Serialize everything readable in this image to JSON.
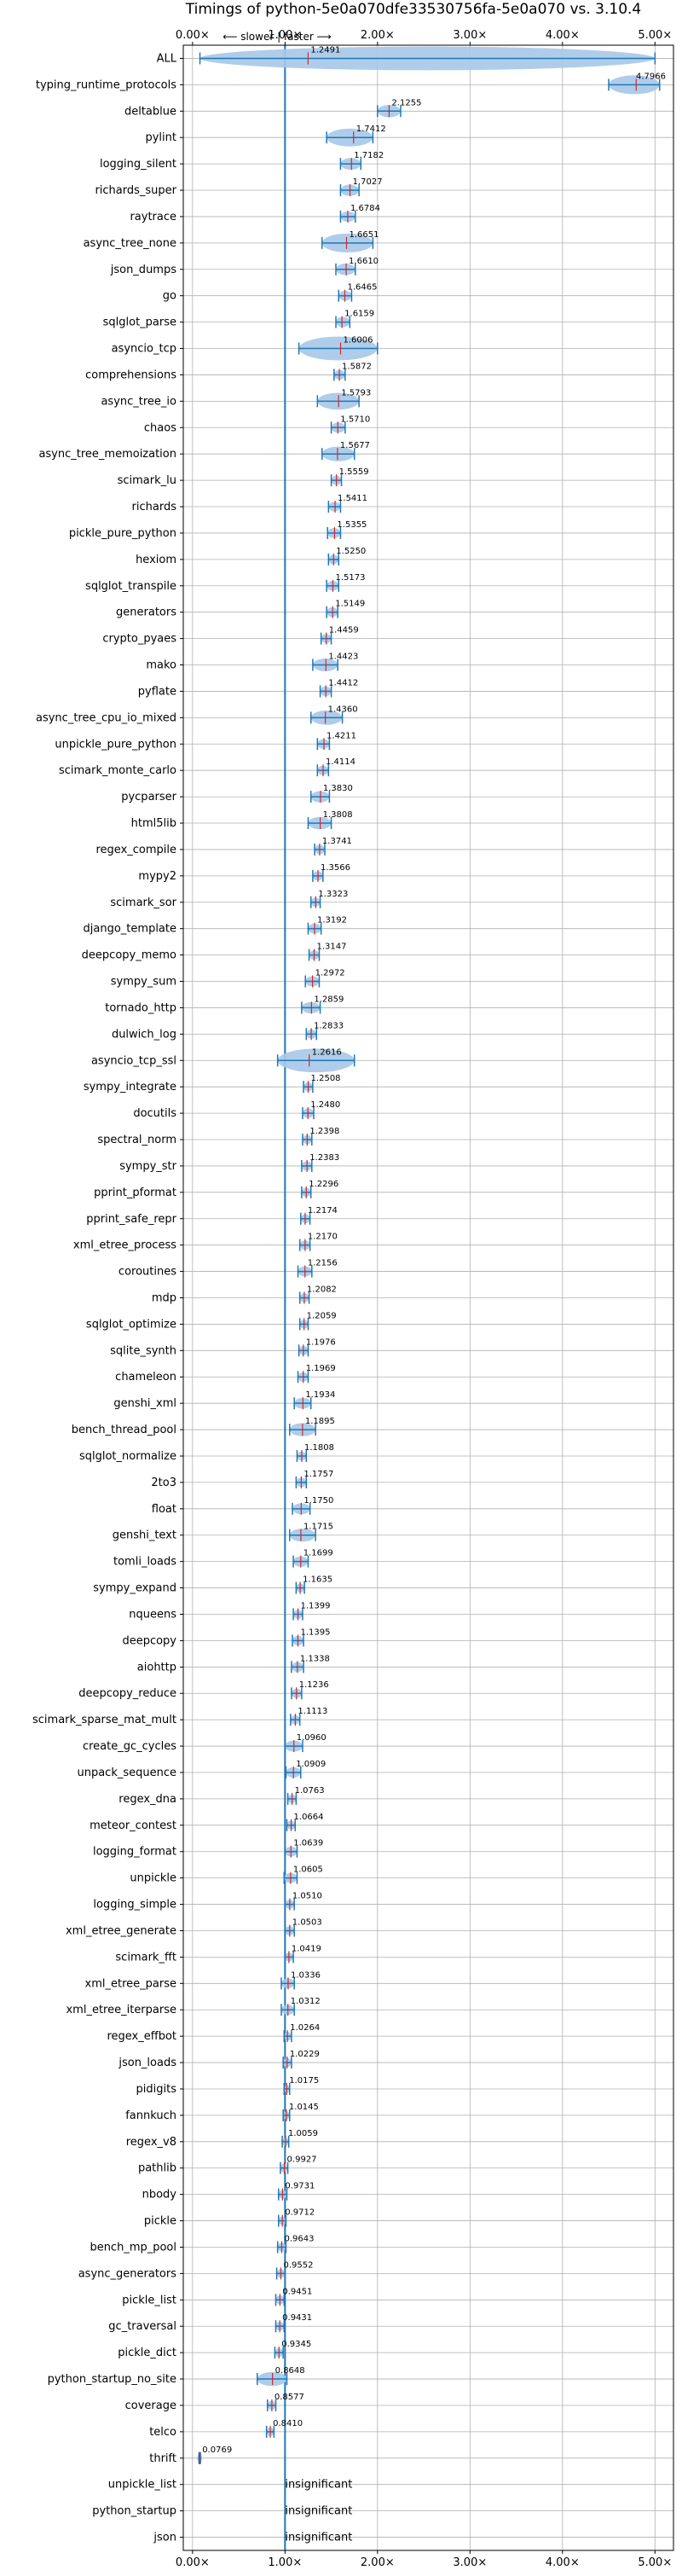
{
  "chart_data": {
    "type": "violin",
    "title": "Timings of python-5e0a070dfe33530756fa-5e0a070 vs. 3.10.4",
    "direction_label": "⟵ slower | faster ⟶",
    "xlim": [
      -0.1,
      5.2
    ],
    "x_ticks": [
      "0.00×",
      "1.00×",
      "2.00×",
      "3.00×",
      "4.00×",
      "5.00×"
    ],
    "x_tick_values": [
      0,
      1,
      2,
      3,
      4,
      5
    ],
    "reference_line": 1.0,
    "grid": true,
    "colors": {
      "violin": "#a6c8e8",
      "line": "#1f77b4",
      "median": "#d62728",
      "grid": "#b0b0b0"
    },
    "benchmarks": [
      {
        "name": "ALL",
        "value": 1.2491,
        "lo": 0.08,
        "hi": 5.0
      },
      {
        "name": "typing_runtime_protocols",
        "value": 4.7966,
        "lo": 4.5,
        "hi": 5.05
      },
      {
        "name": "deltablue",
        "value": 2.1255,
        "lo": 2.0,
        "hi": 2.25
      },
      {
        "name": "pylint",
        "value": 1.7412,
        "lo": 1.45,
        "hi": 1.95
      },
      {
        "name": "logging_silent",
        "value": 1.7182,
        "lo": 1.6,
        "hi": 1.82
      },
      {
        "name": "richards_super",
        "value": 1.7027,
        "lo": 1.6,
        "hi": 1.8
      },
      {
        "name": "raytrace",
        "value": 1.6784,
        "lo": 1.6,
        "hi": 1.76
      },
      {
        "name": "async_tree_none",
        "value": 1.6651,
        "lo": 1.4,
        "hi": 1.95
      },
      {
        "name": "json_dumps",
        "value": 1.661,
        "lo": 1.55,
        "hi": 1.76
      },
      {
        "name": "go",
        "value": 1.6465,
        "lo": 1.58,
        "hi": 1.72
      },
      {
        "name": "sqlglot_parse",
        "value": 1.6159,
        "lo": 1.55,
        "hi": 1.7
      },
      {
        "name": "asyncio_tcp",
        "value": 1.6006,
        "lo": 1.15,
        "hi": 2.0
      },
      {
        "name": "comprehensions",
        "value": 1.5872,
        "lo": 1.53,
        "hi": 1.65
      },
      {
        "name": "async_tree_io",
        "value": 1.5793,
        "lo": 1.35,
        "hi": 1.8
      },
      {
        "name": "chaos",
        "value": 1.571,
        "lo": 1.5,
        "hi": 1.65
      },
      {
        "name": "async_tree_memoization",
        "value": 1.5677,
        "lo": 1.4,
        "hi": 1.75
      },
      {
        "name": "scimark_lu",
        "value": 1.5559,
        "lo": 1.5,
        "hi": 1.61
      },
      {
        "name": "richards",
        "value": 1.5411,
        "lo": 1.47,
        "hi": 1.6
      },
      {
        "name": "pickle_pure_python",
        "value": 1.5355,
        "lo": 1.46,
        "hi": 1.6
      },
      {
        "name": "hexiom",
        "value": 1.525,
        "lo": 1.47,
        "hi": 1.58
      },
      {
        "name": "sqlglot_transpile",
        "value": 1.5173,
        "lo": 1.45,
        "hi": 1.58
      },
      {
        "name": "generators",
        "value": 1.5149,
        "lo": 1.45,
        "hi": 1.57
      },
      {
        "name": "crypto_pyaes",
        "value": 1.4459,
        "lo": 1.39,
        "hi": 1.5
      },
      {
        "name": "mako",
        "value": 1.4423,
        "lo": 1.3,
        "hi": 1.57
      },
      {
        "name": "pyflate",
        "value": 1.4412,
        "lo": 1.38,
        "hi": 1.5
      },
      {
        "name": "async_tree_cpu_io_mixed",
        "value": 1.436,
        "lo": 1.28,
        "hi": 1.62
      },
      {
        "name": "unpickle_pure_python",
        "value": 1.4211,
        "lo": 1.35,
        "hi": 1.48
      },
      {
        "name": "scimark_monte_carlo",
        "value": 1.4114,
        "lo": 1.35,
        "hi": 1.47
      },
      {
        "name": "pycparser",
        "value": 1.383,
        "lo": 1.28,
        "hi": 1.48
      },
      {
        "name": "html5lib",
        "value": 1.3808,
        "lo": 1.25,
        "hi": 1.5
      },
      {
        "name": "regex_compile",
        "value": 1.3741,
        "lo": 1.32,
        "hi": 1.43
      },
      {
        "name": "mypy2",
        "value": 1.3566,
        "lo": 1.3,
        "hi": 1.41
      },
      {
        "name": "scimark_sor",
        "value": 1.3323,
        "lo": 1.28,
        "hi": 1.38
      },
      {
        "name": "django_template",
        "value": 1.3192,
        "lo": 1.25,
        "hi": 1.39
      },
      {
        "name": "deepcopy_memo",
        "value": 1.3147,
        "lo": 1.26,
        "hi": 1.37
      },
      {
        "name": "sympy_sum",
        "value": 1.2972,
        "lo": 1.22,
        "hi": 1.37
      },
      {
        "name": "tornado_http",
        "value": 1.2859,
        "lo": 1.18,
        "hi": 1.38
      },
      {
        "name": "dulwich_log",
        "value": 1.2833,
        "lo": 1.23,
        "hi": 1.34
      },
      {
        "name": "asyncio_tcp_ssl",
        "value": 1.2616,
        "lo": 0.92,
        "hi": 1.75
      },
      {
        "name": "sympy_integrate",
        "value": 1.2508,
        "lo": 1.2,
        "hi": 1.3
      },
      {
        "name": "docutils",
        "value": 1.248,
        "lo": 1.19,
        "hi": 1.31
      },
      {
        "name": "spectral_norm",
        "value": 1.2398,
        "lo": 1.19,
        "hi": 1.29
      },
      {
        "name": "sympy_str",
        "value": 1.2383,
        "lo": 1.18,
        "hi": 1.29
      },
      {
        "name": "pprint_pformat",
        "value": 1.2296,
        "lo": 1.18,
        "hi": 1.28
      },
      {
        "name": "pprint_safe_repr",
        "value": 1.2174,
        "lo": 1.17,
        "hi": 1.27
      },
      {
        "name": "xml_etree_process",
        "value": 1.217,
        "lo": 1.16,
        "hi": 1.27
      },
      {
        "name": "coroutines",
        "value": 1.2156,
        "lo": 1.14,
        "hi": 1.29
      },
      {
        "name": "mdp",
        "value": 1.2082,
        "lo": 1.16,
        "hi": 1.26
      },
      {
        "name": "sqlglot_optimize",
        "value": 1.2059,
        "lo": 1.16,
        "hi": 1.25
      },
      {
        "name": "sqlite_synth",
        "value": 1.1976,
        "lo": 1.15,
        "hi": 1.25
      },
      {
        "name": "chameleon",
        "value": 1.1969,
        "lo": 1.14,
        "hi": 1.25
      },
      {
        "name": "genshi_xml",
        "value": 1.1934,
        "lo": 1.1,
        "hi": 1.28
      },
      {
        "name": "bench_thread_pool",
        "value": 1.1895,
        "lo": 1.05,
        "hi": 1.33
      },
      {
        "name": "sqlglot_normalize",
        "value": 1.1808,
        "lo": 1.13,
        "hi": 1.23
      },
      {
        "name": "2to3",
        "value": 1.1757,
        "lo": 1.12,
        "hi": 1.23
      },
      {
        "name": "float",
        "value": 1.175,
        "lo": 1.08,
        "hi": 1.27
      },
      {
        "name": "genshi_text",
        "value": 1.1715,
        "lo": 1.05,
        "hi": 1.33
      },
      {
        "name": "tomli_loads",
        "value": 1.1699,
        "lo": 1.09,
        "hi": 1.25
      },
      {
        "name": "sympy_expand",
        "value": 1.1635,
        "lo": 1.12,
        "hi": 1.21
      },
      {
        "name": "nqueens",
        "value": 1.1399,
        "lo": 1.09,
        "hi": 1.19
      },
      {
        "name": "deepcopy",
        "value": 1.1395,
        "lo": 1.08,
        "hi": 1.2
      },
      {
        "name": "aiohttp",
        "value": 1.1338,
        "lo": 1.07,
        "hi": 1.2
      },
      {
        "name": "deepcopy_reduce",
        "value": 1.1236,
        "lo": 1.07,
        "hi": 1.18
      },
      {
        "name": "scimark_sparse_mat_mult",
        "value": 1.1113,
        "lo": 1.06,
        "hi": 1.16
      },
      {
        "name": "create_gc_cycles",
        "value": 1.096,
        "lo": 1.0,
        "hi": 1.19
      },
      {
        "name": "unpack_sequence",
        "value": 1.0909,
        "lo": 1.01,
        "hi": 1.17
      },
      {
        "name": "regex_dna",
        "value": 1.0763,
        "lo": 1.03,
        "hi": 1.12
      },
      {
        "name": "meteor_contest",
        "value": 1.0664,
        "lo": 1.02,
        "hi": 1.11
      },
      {
        "name": "logging_format",
        "value": 1.0639,
        "lo": 1.0,
        "hi": 1.13
      },
      {
        "name": "unpickle",
        "value": 1.0605,
        "lo": 0.99,
        "hi": 1.13
      },
      {
        "name": "logging_simple",
        "value": 1.051,
        "lo": 1.0,
        "hi": 1.1
      },
      {
        "name": "xml_etree_generate",
        "value": 1.0503,
        "lo": 1.0,
        "hi": 1.1
      },
      {
        "name": "scimark_fft",
        "value": 1.0419,
        "lo": 1.0,
        "hi": 1.09
      },
      {
        "name": "xml_etree_parse",
        "value": 1.0336,
        "lo": 0.96,
        "hi": 1.1
      },
      {
        "name": "xml_etree_iterparse",
        "value": 1.0312,
        "lo": 0.96,
        "hi": 1.1
      },
      {
        "name": "regex_effbot",
        "value": 1.0264,
        "lo": 0.99,
        "hi": 1.07
      },
      {
        "name": "json_loads",
        "value": 1.0229,
        "lo": 0.98,
        "hi": 1.07
      },
      {
        "name": "pidigits",
        "value": 1.0175,
        "lo": 0.99,
        "hi": 1.05
      },
      {
        "name": "fannkuch",
        "value": 1.0145,
        "lo": 0.98,
        "hi": 1.05
      },
      {
        "name": "regex_v8",
        "value": 1.0059,
        "lo": 0.97,
        "hi": 1.04
      },
      {
        "name": "pathlib",
        "value": 0.9927,
        "lo": 0.95,
        "hi": 1.03
      },
      {
        "name": "nbody",
        "value": 0.9731,
        "lo": 0.93,
        "hi": 1.02
      },
      {
        "name": "pickle",
        "value": 0.9712,
        "lo": 0.93,
        "hi": 1.01
      },
      {
        "name": "bench_mp_pool",
        "value": 0.9643,
        "lo": 0.92,
        "hi": 1.01
      },
      {
        "name": "async_generators",
        "value": 0.9552,
        "lo": 0.91,
        "hi": 1.0
      },
      {
        "name": "pickle_list",
        "value": 0.9451,
        "lo": 0.9,
        "hi": 0.99
      },
      {
        "name": "gc_traversal",
        "value": 0.9431,
        "lo": 0.9,
        "hi": 0.99
      },
      {
        "name": "pickle_dict",
        "value": 0.9345,
        "lo": 0.89,
        "hi": 0.98
      },
      {
        "name": "python_startup_no_site",
        "value": 0.8648,
        "lo": 0.7,
        "hi": 1.02
      },
      {
        "name": "coverage",
        "value": 0.8577,
        "lo": 0.81,
        "hi": 0.9
      },
      {
        "name": "telco",
        "value": 0.841,
        "lo": 0.8,
        "hi": 0.88
      },
      {
        "name": "thrift",
        "value": 0.0769,
        "lo": 0.07,
        "hi": 0.085
      },
      {
        "name": "unpickle_list",
        "value": null,
        "text": "insignificant"
      },
      {
        "name": "python_startup",
        "value": null,
        "text": "insignificant"
      },
      {
        "name": "json",
        "value": null,
        "text": "insignificant"
      }
    ]
  }
}
